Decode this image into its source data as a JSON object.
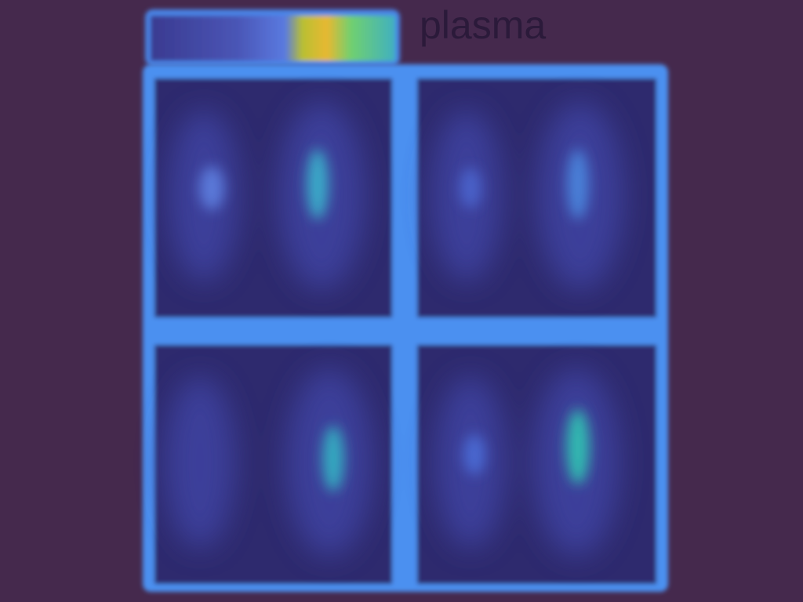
{
  "label": "plasma"
}
